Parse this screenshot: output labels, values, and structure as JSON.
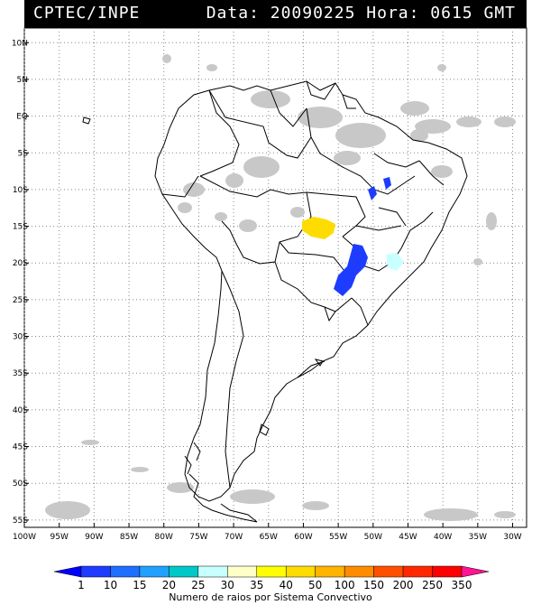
{
  "header": {
    "agency": "CPTEC/INPE",
    "datetime": "Data: 20090225 Hora: 0615 GMT"
  },
  "map": {
    "lat_labels": [
      "10N",
      "5N",
      "EQ",
      "5S",
      "10S",
      "15S",
      "20S",
      "25S",
      "30S",
      "35S",
      "40S",
      "45S",
      "50S",
      "55S"
    ],
    "lon_labels": [
      "100W",
      "95W",
      "90W",
      "85W",
      "80W",
      "75W",
      "70W",
      "65W",
      "60W",
      "55W",
      "50W",
      "45W",
      "40W",
      "35W",
      "30W"
    ],
    "lat_range": [
      -56,
      12
    ],
    "lon_range": [
      -100,
      -28
    ],
    "grid": true
  },
  "colorbar": {
    "ticks": [
      "1",
      "10",
      "15",
      "20",
      "25",
      "30",
      "35",
      "40",
      "50",
      "100",
      "150",
      "200",
      "250",
      "350"
    ],
    "colors": [
      "#0000ff",
      "#1e3cff",
      "#1e6eff",
      "#20a0ff",
      "#00c8c8",
      "#c8ffff",
      "#ffffc8",
      "#ffff00",
      "#ffdc00",
      "#ffb400",
      "#ff8c00",
      "#ff5000",
      "#ff2800",
      "#ff0000",
      "#ff1493"
    ],
    "label": "Numero de raios por Sistema Convectivo"
  },
  "overlays": {
    "cloud_color": "#c8c8c8",
    "storm_colors": {
      "yellow": "#ffdc00",
      "blue": "#1e3cff",
      "cyan": "#c8ffff"
    }
  }
}
